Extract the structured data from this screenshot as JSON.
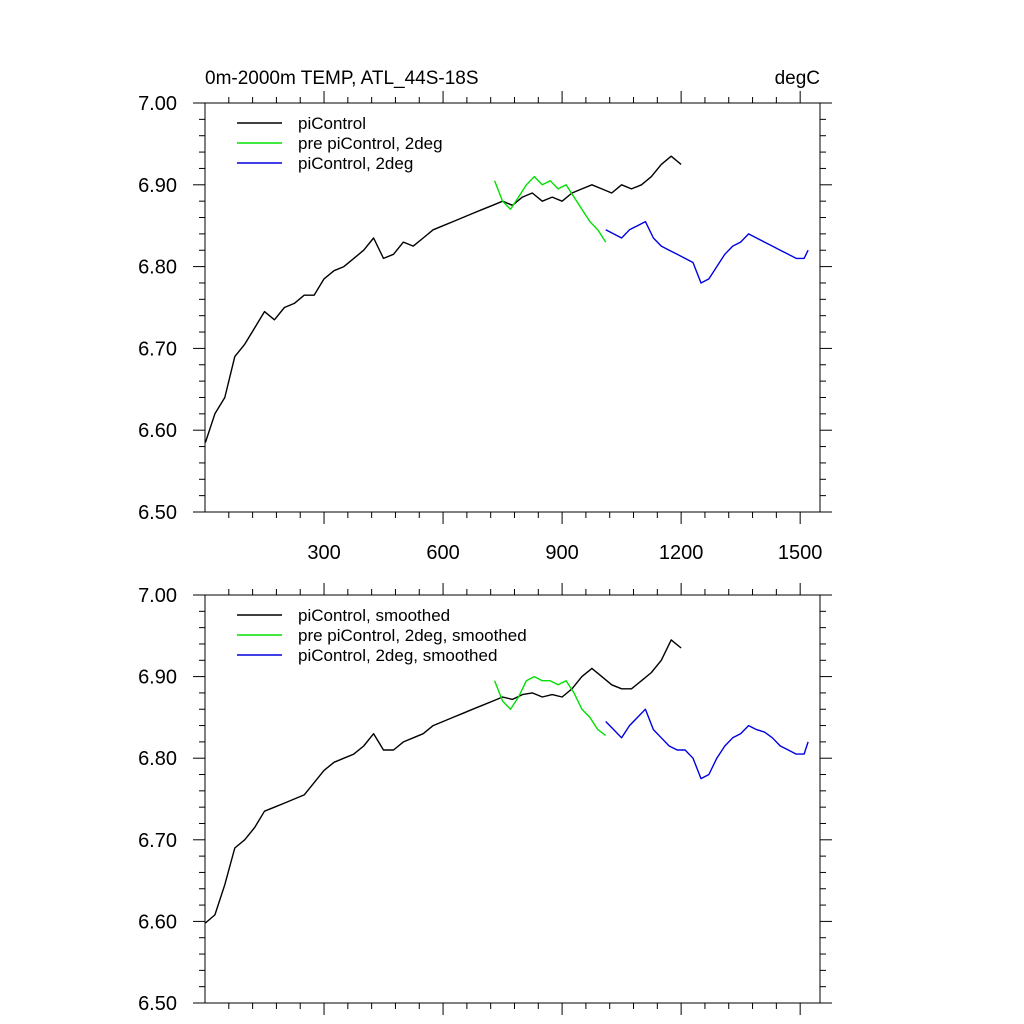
{
  "chart_data": [
    {
      "type": "line",
      "title": "0m-2000m TEMP, ATL_44S-18S",
      "unit_label": "degC",
      "xlim": [
        0,
        1550
      ],
      "ylim": [
        6.5,
        7.0
      ],
      "y_ticks": [
        "6.50",
        "6.60",
        "6.70",
        "6.80",
        "6.90",
        "7.00"
      ],
      "x_ticks": [
        "300",
        "600",
        "900",
        "1200",
        "1500"
      ],
      "x_tick_values": [
        300,
        600,
        900,
        1200,
        1500
      ],
      "x_tick_labels_visible": true,
      "grid": false,
      "legend_position": "top-left",
      "series": [
        {
          "name": "piControl",
          "color": "#000000",
          "x": [
            1,
            25,
            50,
            75,
            100,
            125,
            150,
            175,
            200,
            225,
            250,
            275,
            300,
            325,
            350,
            375,
            400,
            425,
            450,
            475,
            500,
            525,
            550,
            575,
            600,
            625,
            650,
            675,
            700,
            725,
            750,
            775,
            800,
            825,
            850,
            875,
            900,
            925,
            950,
            975,
            1000,
            1025,
            1050,
            1075,
            1100,
            1125,
            1150,
            1175,
            1200
          ],
          "y": [
            6.585,
            6.62,
            6.64,
            6.69,
            6.705,
            6.725,
            6.745,
            6.735,
            6.75,
            6.755,
            6.765,
            6.765,
            6.785,
            6.795,
            6.8,
            6.81,
            6.82,
            6.835,
            6.81,
            6.815,
            6.83,
            6.825,
            6.835,
            6.845,
            6.85,
            6.855,
            6.86,
            6.865,
            6.87,
            6.875,
            6.88,
            6.875,
            6.885,
            6.89,
            6.88,
            6.885,
            6.88,
            6.89,
            6.895,
            6.9,
            6.895,
            6.89,
            6.9,
            6.895,
            6.9,
            6.91,
            6.925,
            6.935,
            6.925
          ]
        },
        {
          "name": "pre piControl, 2deg",
          "color": "#00e000",
          "x": [
            730,
            750,
            770,
            790,
            810,
            830,
            850,
            870,
            890,
            910,
            930,
            950,
            970,
            990,
            1010
          ],
          "y": [
            6.905,
            6.88,
            6.87,
            6.885,
            6.9,
            6.91,
            6.9,
            6.905,
            6.895,
            6.9,
            6.885,
            6.87,
            6.855,
            6.845,
            6.83
          ]
        },
        {
          "name": "piControl, 2deg",
          "color": "#0000e0",
          "x": [
            1010,
            1030,
            1050,
            1070,
            1090,
            1110,
            1130,
            1150,
            1170,
            1190,
            1210,
            1230,
            1250,
            1270,
            1290,
            1310,
            1330,
            1350,
            1370,
            1390,
            1410,
            1430,
            1450,
            1470,
            1490,
            1510,
            1520
          ],
          "y": [
            6.845,
            6.84,
            6.835,
            6.845,
            6.85,
            6.855,
            6.835,
            6.825,
            6.82,
            6.815,
            6.81,
            6.805,
            6.78,
            6.785,
            6.8,
            6.815,
            6.825,
            6.83,
            6.84,
            6.835,
            6.83,
            6.825,
            6.82,
            6.815,
            6.81,
            6.81,
            6.82
          ]
        }
      ]
    },
    {
      "type": "line",
      "title": "",
      "xlim": [
        0,
        1550
      ],
      "ylim": [
        6.5,
        7.0
      ],
      "y_ticks": [
        "6.50",
        "6.60",
        "6.70",
        "6.80",
        "6.90",
        "7.00"
      ],
      "x_tick_values": [
        300,
        600,
        900,
        1200,
        1500
      ],
      "x_tick_labels_visible": false,
      "grid": false,
      "legend_position": "top-left",
      "series": [
        {
          "name": "piControl, smoothed",
          "color": "#000000",
          "x": [
            1,
            25,
            50,
            75,
            100,
            125,
            150,
            175,
            200,
            225,
            250,
            275,
            300,
            325,
            350,
            375,
            400,
            425,
            450,
            475,
            500,
            525,
            550,
            575,
            600,
            625,
            650,
            675,
            700,
            725,
            750,
            775,
            800,
            825,
            850,
            875,
            900,
            925,
            950,
            975,
            1000,
            1025,
            1050,
            1075,
            1100,
            1125,
            1150,
            1175,
            1200
          ],
          "y": [
            6.598,
            6.608,
            6.645,
            6.69,
            6.7,
            6.715,
            6.735,
            6.74,
            6.745,
            6.75,
            6.755,
            6.77,
            6.785,
            6.795,
            6.8,
            6.805,
            6.815,
            6.83,
            6.81,
            6.81,
            6.82,
            6.825,
            6.83,
            6.84,
            6.845,
            6.85,
            6.855,
            6.86,
            6.865,
            6.87,
            6.875,
            6.872,
            6.878,
            6.88,
            6.875,
            6.878,
            6.875,
            6.885,
            6.9,
            6.91,
            6.9,
            6.89,
            6.885,
            6.885,
            6.895,
            6.905,
            6.92,
            6.945,
            6.935
          ]
        },
        {
          "name": "pre piControl, 2deg, smoothed",
          "color": "#00e000",
          "x": [
            730,
            750,
            770,
            790,
            810,
            830,
            850,
            870,
            890,
            910,
            930,
            950,
            970,
            990,
            1010
          ],
          "y": [
            6.895,
            6.87,
            6.86,
            6.875,
            6.895,
            6.9,
            6.895,
            6.895,
            6.89,
            6.895,
            6.88,
            6.86,
            6.85,
            6.835,
            6.828
          ]
        },
        {
          "name": "piControl, 2deg, smoothed",
          "color": "#0000e0",
          "x": [
            1010,
            1030,
            1050,
            1070,
            1090,
            1110,
            1130,
            1150,
            1170,
            1190,
            1210,
            1230,
            1250,
            1270,
            1290,
            1310,
            1330,
            1350,
            1370,
            1390,
            1410,
            1430,
            1450,
            1470,
            1490,
            1510,
            1520
          ],
          "y": [
            6.845,
            6.835,
            6.825,
            6.84,
            6.85,
            6.86,
            6.835,
            6.825,
            6.815,
            6.81,
            6.81,
            6.8,
            6.775,
            6.78,
            6.8,
            6.815,
            6.825,
            6.83,
            6.84,
            6.835,
            6.832,
            6.825,
            6.815,
            6.81,
            6.805,
            6.805,
            6.82
          ]
        }
      ]
    }
  ]
}
